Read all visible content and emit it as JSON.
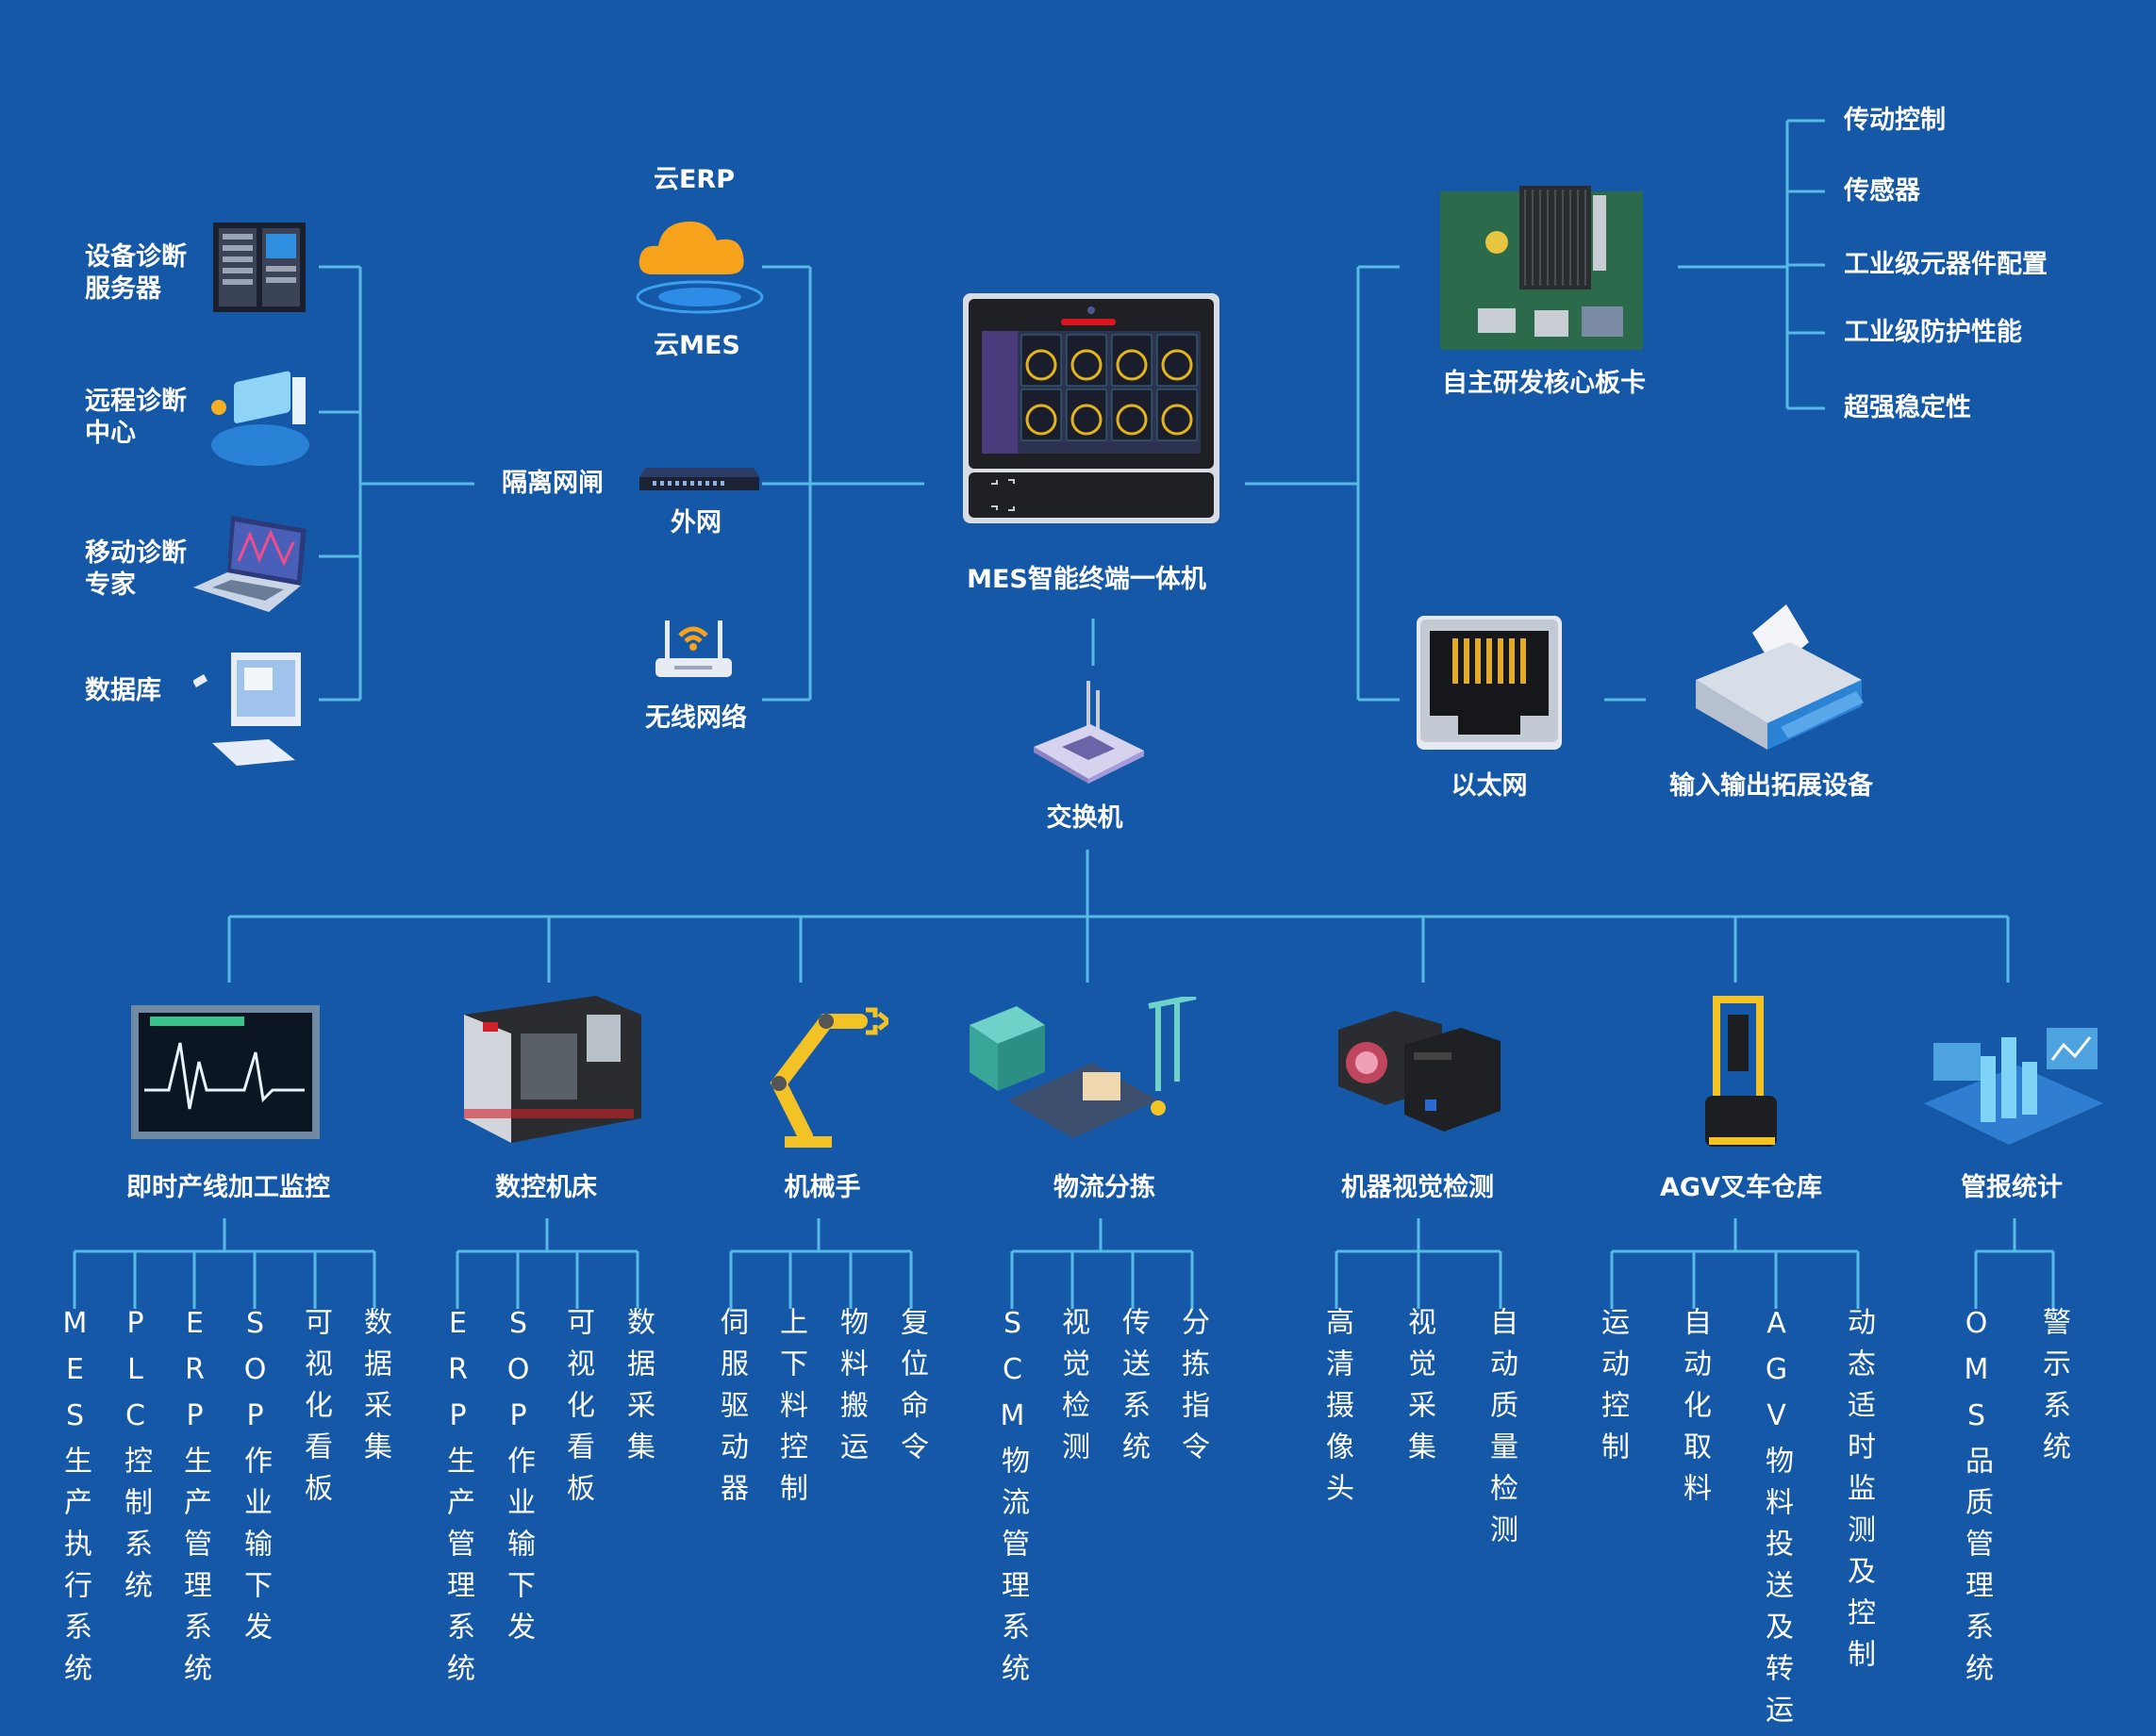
{
  "colors": {
    "background": "#1558a7",
    "connector": "#56b9e6",
    "cloud": "#f7a21b"
  },
  "left": {
    "server": [
      "设备诊断",
      "服务器"
    ],
    "remote": [
      "远程诊断",
      "中心"
    ],
    "mobile": [
      "移动诊断",
      "专家"
    ],
    "database": "数据库"
  },
  "gatekeeper": "隔离网闸",
  "cloud": {
    "erp": "云ERP",
    "mes": "云MES"
  },
  "extranet": "外网",
  "wireless": "无线网络",
  "terminal": "MES智能终端一体机",
  "core_board": {
    "label": "自主研发核心板卡",
    "features": [
      "传动控制",
      "传感器",
      "工业级元器件配置",
      "工业级防护性能",
      "超强稳定性"
    ]
  },
  "ethernet": "以太网",
  "io_device": "输入输出拓展设备",
  "switch": "交换机",
  "modules": [
    {
      "title": "即时产线加工监控",
      "icon": "monitor-icon",
      "items": [
        "MES生产执行系统",
        "PLC控制系统",
        "ERP生产管理系统",
        "SOP作业输下发",
        "可视化看板",
        "数据采集"
      ]
    },
    {
      "title": "数控机床",
      "icon": "cnc-machine-icon",
      "items": [
        "ERP生产管理系统",
        "SOP作业输下发",
        "可视化看板",
        "数据采集"
      ]
    },
    {
      "title": "机械手",
      "icon": "robot-arm-icon",
      "items": [
        "伺服驱动器",
        "上下料控制",
        "物料搬运",
        "复位命令"
      ]
    },
    {
      "title": "物流分拣",
      "icon": "logistics-icon",
      "items": [
        "SCM物流管理系统",
        "视觉检测",
        "传送系统",
        "分拣指令"
      ]
    },
    {
      "title": "机器视觉检测",
      "icon": "camera-icon",
      "items": [
        "高清摄像头",
        "视觉采集",
        "自动质量检测"
      ]
    },
    {
      "title": "AGV叉车仓库",
      "icon": "forklift-icon",
      "items": [
        "运动控制",
        "自动化取料",
        "AGV物料投送及转运",
        "动态适时监测及控制"
      ]
    },
    {
      "title": "管报统计",
      "icon": "statistics-icon",
      "items": [
        "OMS品质管理系统",
        "警示系统"
      ]
    }
  ]
}
